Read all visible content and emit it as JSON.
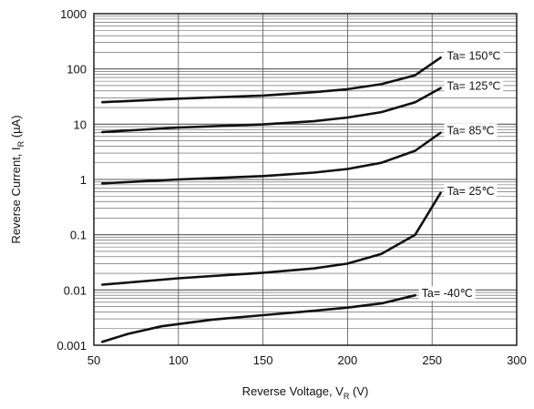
{
  "chart_data": {
    "type": "line",
    "title": "",
    "xlabel": {
      "main": "Reverse Voltage, V",
      "sub": "R",
      "unit": " (V)"
    },
    "ylabel": {
      "main": "Reverse Current, I",
      "sub": "R",
      "unit": " (µA)"
    },
    "xlim": [
      50,
      300
    ],
    "ylim": [
      0.001,
      1000
    ],
    "yscale": "log",
    "x_ticks": [
      {
        "value": 50,
        "label": "50"
      },
      {
        "value": 100,
        "label": "100"
      },
      {
        "value": 150,
        "label": "150"
      },
      {
        "value": 200,
        "label": "200"
      },
      {
        "value": 250,
        "label": "250"
      },
      {
        "value": 300,
        "label": "300"
      }
    ],
    "y_ticks": [
      {
        "value": 1000,
        "label": "1000"
      },
      {
        "value": 100,
        "label": "100"
      },
      {
        "value": 10,
        "label": "10"
      },
      {
        "value": 1,
        "label": "1"
      },
      {
        "value": 0.1,
        "label": "0.1"
      },
      {
        "value": 0.01,
        "label": "0.01"
      },
      {
        "value": 0.001,
        "label": "0.001"
      }
    ],
    "grid": true,
    "legend": "none",
    "series": [
      {
        "name": "Ta= 150℃",
        "x": [
          55,
          100,
          150,
          180,
          200,
          220,
          240,
          255
        ],
        "y": [
          25,
          29,
          33,
          38,
          43,
          53,
          77,
          160
        ]
      },
      {
        "name": "Ta= 125℃",
        "x": [
          55,
          100,
          150,
          180,
          200,
          220,
          240,
          255
        ],
        "y": [
          7.2,
          8.7,
          9.9,
          11.3,
          13.2,
          16.5,
          25,
          45
        ]
      },
      {
        "name": "Ta= 85℃",
        "x": [
          55,
          100,
          150,
          180,
          200,
          220,
          240,
          255
        ],
        "y": [
          0.85,
          1.0,
          1.15,
          1.33,
          1.55,
          2.0,
          3.3,
          7.0
        ]
      },
      {
        "name": "Ta= 25℃",
        "x": [
          55,
          100,
          150,
          180,
          200,
          220,
          240,
          255
        ],
        "y": [
          0.0125,
          0.0163,
          0.0205,
          0.0245,
          0.03,
          0.045,
          0.1,
          0.57
        ]
      },
      {
        "name": "Ta= -40℃",
        "x": [
          55,
          70,
          90,
          120,
          150,
          180,
          200,
          220,
          240
        ],
        "y": [
          0.00115,
          0.0016,
          0.0022,
          0.0029,
          0.0035,
          0.0042,
          0.0048,
          0.0057,
          0.008
        ]
      }
    ],
    "colors": {
      "line": "#111111",
      "grid": "#555555",
      "frame": "#111111",
      "background": "#ffffff"
    }
  }
}
